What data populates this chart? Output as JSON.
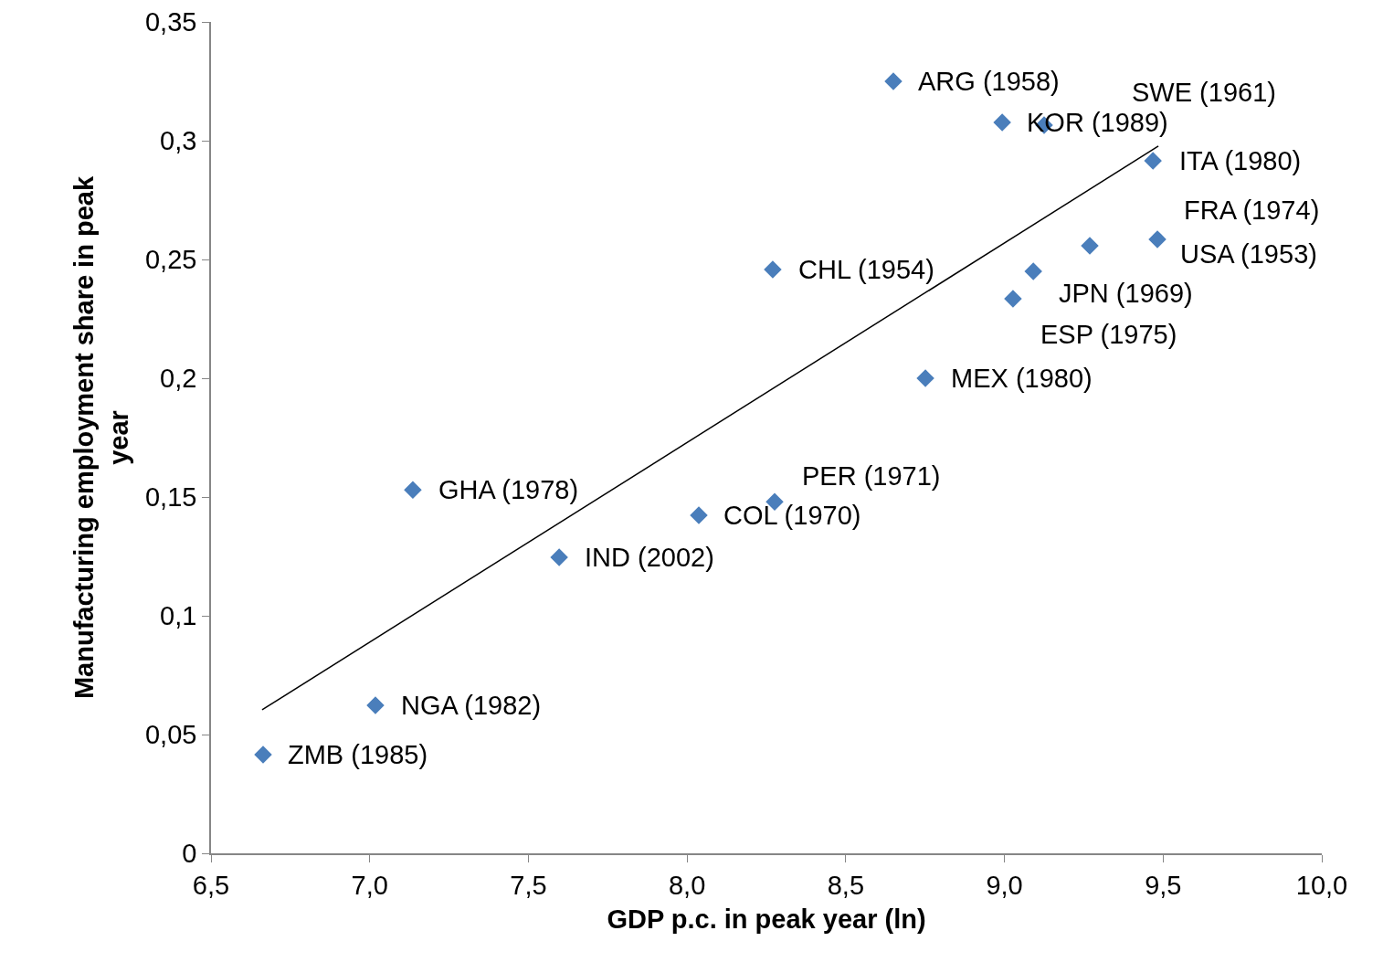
{
  "chart_data": {
    "type": "scatter",
    "xlabel": "GDP p.c. in peak year (ln)",
    "ylabel": "Manufacturing employment share in peak year",
    "xlim": [
      6.5,
      10.0
    ],
    "xticks": [
      {
        "value": 6.5,
        "label": "6,5"
      },
      {
        "value": 7.0,
        "label": "7,0"
      },
      {
        "value": 7.5,
        "label": "7,5"
      },
      {
        "value": 8.0,
        "label": "8,0"
      },
      {
        "value": 8.5,
        "label": "8,5"
      },
      {
        "value": 9.0,
        "label": "9,0"
      },
      {
        "value": 9.5,
        "label": "9,5"
      },
      {
        "value": 10.0,
        "label": "10,0"
      }
    ],
    "ylim": [
      0,
      0.35
    ],
    "yticks": [
      0,
      {
        "value": 0.05,
        "label": "0,05"
      },
      {
        "value": 0.1,
        "label": "0,1"
      },
      {
        "value": 0.15,
        "label": "0,15"
      },
      {
        "value": 0.2,
        "label": "0,2"
      },
      {
        "value": 0.25,
        "label": "0,25"
      },
      {
        "value": 0.3,
        "label": "0,3"
      },
      {
        "value": 0.35,
        "label": "0,35"
      }
    ],
    "series": [
      {
        "marker": "diamond",
        "color": "#4a7ebb",
        "x": [
          6.664,
          7.018,
          7.136,
          7.597,
          8.037,
          8.276,
          8.27,
          8.751,
          8.65,
          8.993,
          9.125,
          9.468,
          9.269,
          9.482,
          9.091,
          9.027
        ],
        "values": [
          0.0415,
          0.0623,
          0.153,
          0.1246,
          0.1423,
          0.148,
          0.2458,
          0.2,
          0.325,
          0.3077,
          0.3065,
          0.2915,
          0.2558,
          0.2585,
          0.245,
          0.2335
        ]
      },
      {
        "type": "line",
        "marker": "none",
        "color": "#000000",
        "x": [
          6.661,
          9.485
        ],
        "values": [
          0.0604,
          0.2977
        ]
      }
    ],
    "annotations": [
      {
        "text": "ZMB (1985)",
        "x": 6.664,
        "y": 0.0415
      },
      {
        "text": "NGA (1982)",
        "x": 7.018,
        "y": 0.0623
      },
      {
        "text": "GHA (1978)",
        "x": 7.136,
        "y": 0.153
      },
      {
        "text": "IND (2002)",
        "x": 7.597,
        "y": 0.1246
      },
      {
        "text": "COL (1970)",
        "x": 8.037,
        "y": 0.1423
      },
      {
        "text": "PER (1971)",
        "x": 8.276,
        "y": 0.148
      },
      {
        "text": "CHL (1954)",
        "x": 8.27,
        "y": 0.2458
      },
      {
        "text": "MEX (1980)",
        "x": 8.751,
        "y": 0.2
      },
      {
        "text": "ARG (1958)",
        "x": 8.65,
        "y": 0.325
      },
      {
        "text": "KOR (1989)",
        "x": 8.993,
        "y": 0.3077
      },
      "SWE (1961)",
      {
        "text": "ITA (1980)",
        "x": 9.468,
        "y": 0.2915
      },
      "FRA (1974)",
      {
        "text": "USA (1953)",
        "x": 9.482,
        "y": 0.2585
      },
      {
        "text": "JPN (1969)",
        "x": 9.091,
        "y": 0.245
      },
      {
        "text": "ESP (1975)",
        "x": 9.027,
        "y": 0.2335
      }
    ]
  }
}
